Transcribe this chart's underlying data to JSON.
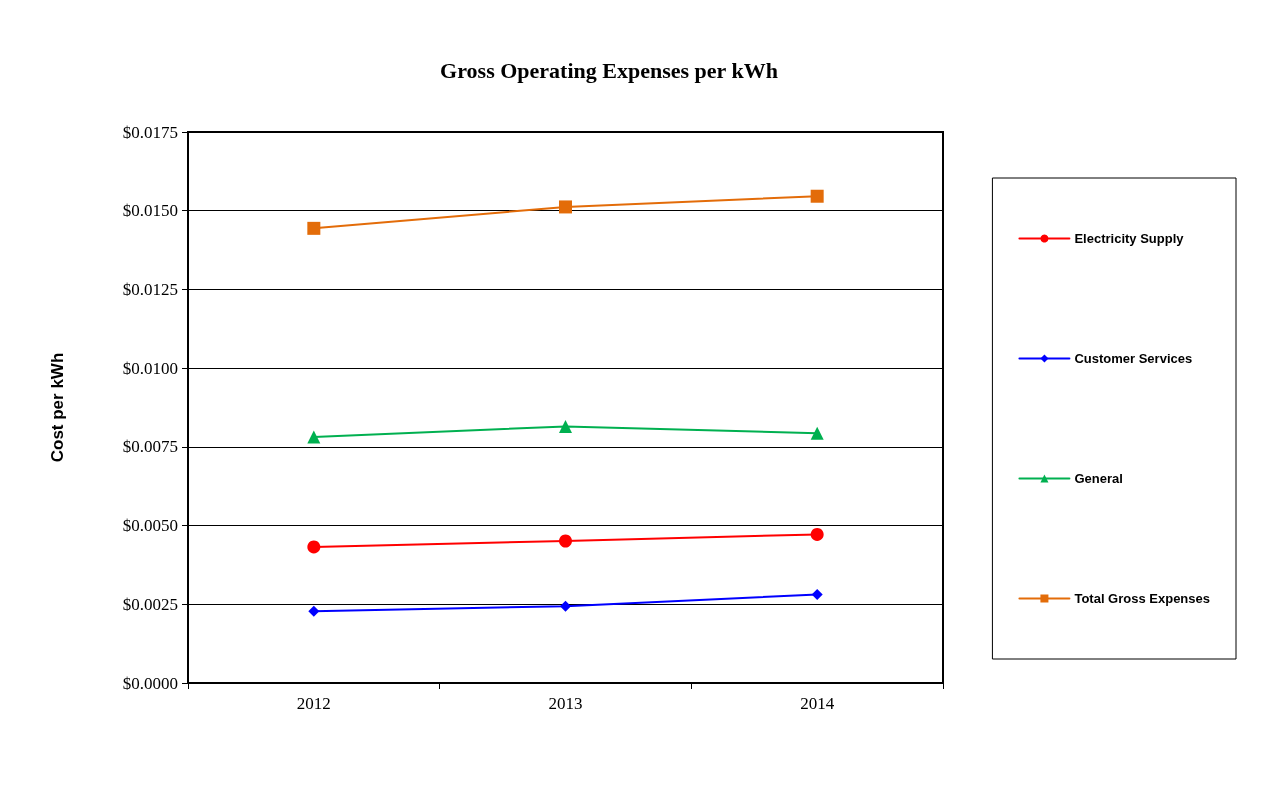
{
  "chart_data": {
    "type": "line",
    "title": "Gross Operating Expenses per kWh",
    "ylabel": "Cost per kWh",
    "categories": [
      "2012",
      "2013",
      "2014"
    ],
    "series": [
      {
        "name": "Electricity Supply",
        "color": "#ff0000",
        "marker": "circle",
        "values": [
          0.00432,
          0.00451,
          0.00472
        ]
      },
      {
        "name": "Customer Services",
        "color": "#0000ff",
        "marker": "diamond",
        "values": [
          0.00228,
          0.00244,
          0.00281
        ]
      },
      {
        "name": "General",
        "color": "#00b050",
        "marker": "triangle",
        "values": [
          0.00781,
          0.00815,
          0.00793
        ]
      },
      {
        "name": "Total Gross Expenses",
        "color": "#e36c09",
        "marker": "square",
        "values": [
          0.01444,
          0.01512,
          0.01546
        ]
      }
    ],
    "ylim": [
      0,
      0.0175
    ],
    "yticks": [
      {
        "value": 0,
        "label": "$0.0000"
      },
      {
        "value": 0.0025,
        "label": "$0.0025"
      },
      {
        "value": 0.005,
        "label": "$0.0050"
      },
      {
        "value": 0.0075,
        "label": "$0.0075"
      },
      {
        "value": 0.01,
        "label": "$0.0100"
      },
      {
        "value": 0.0125,
        "label": "$0.0125"
      },
      {
        "value": 0.015,
        "label": "$0.0150"
      },
      {
        "value": 0.0175,
        "label": "$0.0175"
      }
    ],
    "grid": "y",
    "legend": "right"
  }
}
